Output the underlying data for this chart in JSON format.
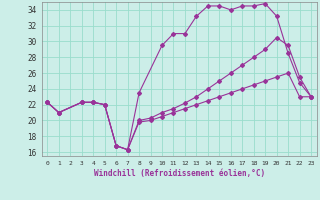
{
  "xlabel": "Windchill (Refroidissement éolien,°C)",
  "background_color": "#cceee8",
  "grid_color": "#99ddcc",
  "line_color": "#993399",
  "xlim": [
    -0.5,
    23.5
  ],
  "ylim": [
    15.5,
    35.0
  ],
  "yticks": [
    16,
    18,
    20,
    22,
    24,
    26,
    28,
    30,
    32,
    34
  ],
  "xticks": [
    0,
    1,
    2,
    3,
    4,
    5,
    6,
    7,
    8,
    9,
    10,
    11,
    12,
    13,
    14,
    15,
    16,
    17,
    18,
    19,
    20,
    21,
    22,
    23
  ],
  "series1_x": [
    0,
    1,
    3,
    4,
    5,
    6,
    7,
    8,
    10,
    11,
    12,
    13,
    14,
    15,
    16,
    17,
    18,
    19,
    20,
    21,
    22,
    23
  ],
  "series1_y": [
    22.3,
    21.0,
    22.3,
    22.3,
    22.0,
    16.8,
    16.3,
    23.5,
    29.5,
    31.0,
    31.0,
    33.2,
    34.5,
    34.5,
    34.0,
    34.5,
    34.5,
    34.8,
    33.2,
    28.5,
    24.8,
    23.0
  ],
  "series2_x": [
    0,
    1,
    3,
    4,
    5,
    6,
    7,
    8,
    9,
    10,
    11,
    12,
    13,
    14,
    15,
    16,
    17,
    18,
    19,
    20,
    21,
    22,
    23
  ],
  "series2_y": [
    22.3,
    21.0,
    22.3,
    22.3,
    22.0,
    16.8,
    16.3,
    20.0,
    20.3,
    21.0,
    21.5,
    22.2,
    23.0,
    24.0,
    25.0,
    26.0,
    27.0,
    28.0,
    29.0,
    30.5,
    29.5,
    25.5,
    23.0
  ],
  "series3_x": [
    0,
    1,
    3,
    4,
    5,
    6,
    7,
    8,
    9,
    10,
    11,
    12,
    13,
    14,
    15,
    16,
    17,
    18,
    19,
    20,
    21,
    22,
    23
  ],
  "series3_y": [
    22.3,
    21.0,
    22.3,
    22.3,
    22.0,
    16.8,
    16.3,
    19.8,
    20.0,
    20.5,
    21.0,
    21.5,
    22.0,
    22.5,
    23.0,
    23.5,
    24.0,
    24.5,
    25.0,
    25.5,
    26.0,
    23.0,
    23.0
  ]
}
